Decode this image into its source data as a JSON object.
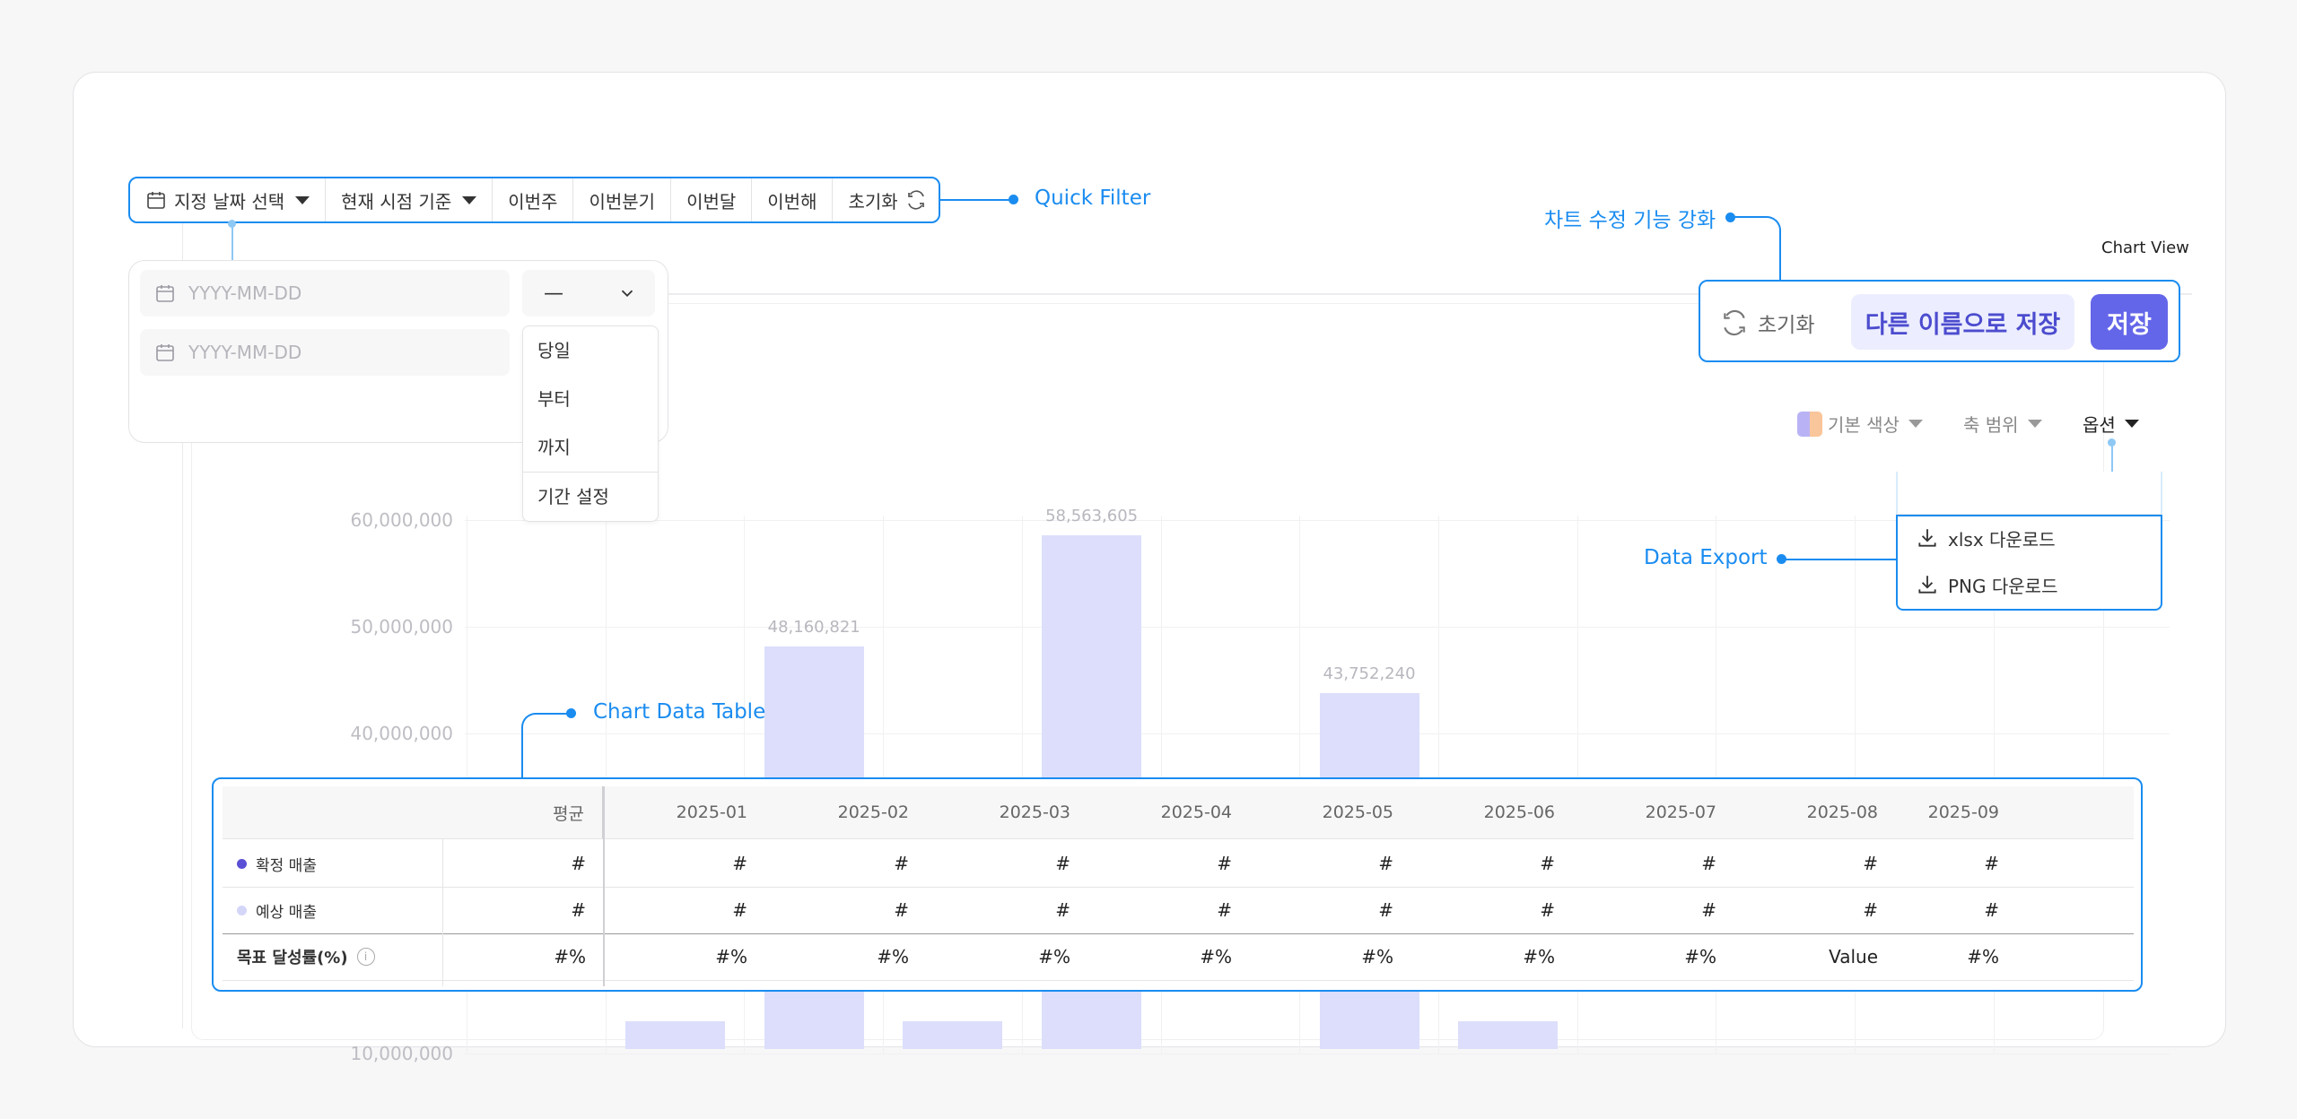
{
  "quick_filter": {
    "date_select": "지정 날짜 선택",
    "basis": "현재 시점 기준",
    "this_week": "이번주",
    "this_quarter": "이번분기",
    "this_month": "이번달",
    "this_year": "이번해",
    "reset": "초기화"
  },
  "date_panel": {
    "placeholder_1": "YYYY-MM-DD",
    "placeholder_2": "YYYY-MM-DD",
    "select_value": "—",
    "options": [
      "당일",
      "부터",
      "까지",
      "기간 설정"
    ]
  },
  "callouts": {
    "quick_filter": "Quick Filter",
    "chart_edit": "차트 수정 기능 강화",
    "chart_view": "Chart View",
    "data_export": "Data Export",
    "chart_data_table": "Chart Data Table"
  },
  "toolbar": {
    "reset": "초기화",
    "save_as": "다른 이름으로 저장",
    "save": "저장"
  },
  "chart_tools": {
    "color": "기본 색상",
    "axis_range": "축 범위",
    "options": "옵션"
  },
  "export": {
    "xlsx": "xlsx 다운로드",
    "png": "PNG 다운로드"
  },
  "chart_data": {
    "type": "bar",
    "title": "",
    "xlabel": "",
    "ylabel": "",
    "ylim": [
      0,
      60000000
    ],
    "yticks": [
      "60,000,000",
      "50,000,000",
      "40,000,000",
      "10,000,000"
    ],
    "categories": [
      "2025-01",
      "2025-02",
      "2025-03",
      "2025-04",
      "2025-05",
      "2025-06",
      "2025-07",
      "2025-08",
      "2025-09"
    ],
    "values": [
      13000000,
      48160821,
      13000000,
      58563605,
      0,
      43752240,
      13000000,
      0,
      0
    ],
    "data_labels": [
      "",
      "48,160,821",
      "",
      "58,563,605",
      "",
      "43,752,240",
      "",
      "",
      ""
    ]
  },
  "table": {
    "header": [
      "평균",
      "2025-01",
      "2025-02",
      "2025-03",
      "2025-04",
      "2025-05",
      "2025-06",
      "2025-07",
      "2025-08",
      "2025-09"
    ],
    "rows": [
      {
        "label": "확정 매출",
        "dot": "#5b4fd6",
        "cells": [
          "#",
          "#",
          "#",
          "#",
          "#",
          "#",
          "#",
          "#",
          "#",
          "#"
        ]
      },
      {
        "label": "예상 매출",
        "dot": "#d4d6f8",
        "cells": [
          "#",
          "#",
          "#",
          "#",
          "#",
          "#",
          "#",
          "#",
          "#",
          "#"
        ]
      },
      {
        "label": "목표 달성률(%)",
        "dot": "",
        "cells": [
          "#%",
          "#%",
          "#%",
          "#%",
          "#%",
          "#%",
          "#%",
          "#%",
          "Value",
          "#%"
        ]
      }
    ]
  }
}
